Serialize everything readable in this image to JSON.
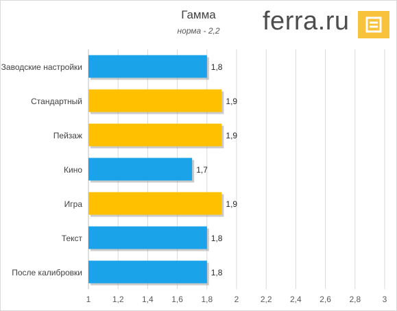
{
  "brand": {
    "text": "ferra.ru",
    "logo_color": "#f9c23c"
  },
  "chart_data": {
    "type": "bar",
    "orientation": "horizontal",
    "title": "Гамма",
    "subtitle": "норма - 2,2",
    "categories": [
      "Заводские настройки",
      "Стандартный",
      "Пейзаж",
      "Кино",
      "Игра",
      "Текст",
      "После калибровки"
    ],
    "values": [
      1.8,
      1.9,
      1.9,
      1.7,
      1.9,
      1.8,
      1.8
    ],
    "value_labels": [
      "1,8",
      "1,9",
      "1,9",
      "1,7",
      "1,9",
      "1,8",
      "1,8"
    ],
    "bar_colors": [
      "#1aa3e8",
      "#ffc000",
      "#ffc000",
      "#1aa3e8",
      "#ffc000",
      "#1aa3e8",
      "#1aa3e8"
    ],
    "xlim": [
      1,
      3
    ],
    "ticks": [
      1,
      1.2,
      1.4,
      1.6,
      1.8,
      2,
      2.2,
      2.4,
      2.6,
      2.8,
      3
    ],
    "tick_labels": [
      "1",
      "1,2",
      "1,4",
      "1,6",
      "1,8",
      "2",
      "2,2",
      "2,4",
      "2,6",
      "2,8",
      "3"
    ],
    "grid": true
  }
}
